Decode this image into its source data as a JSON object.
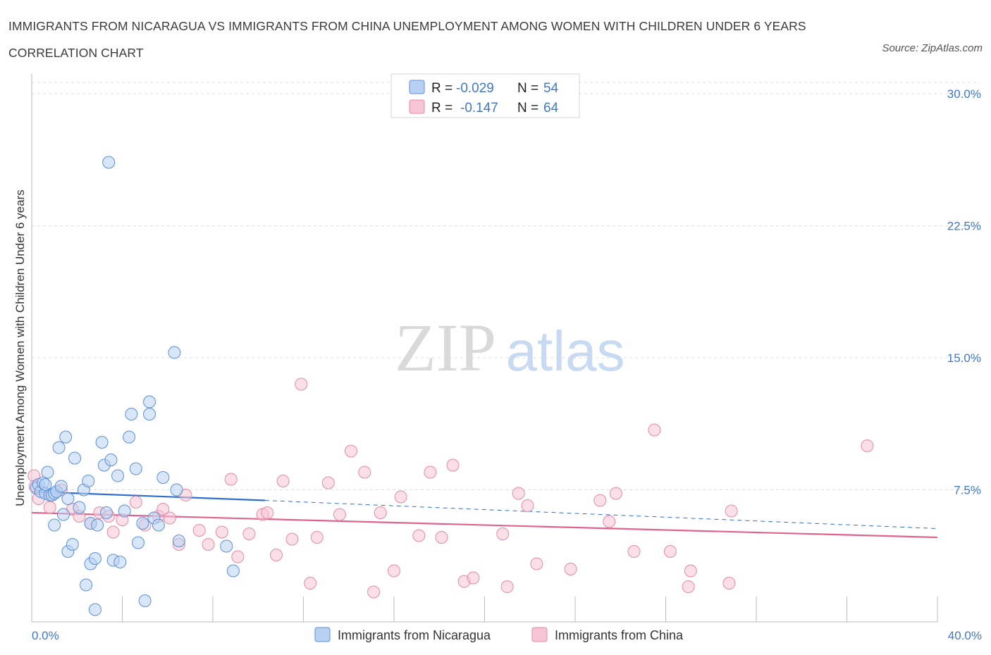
{
  "title": "IMMIGRANTS FROM NICARAGUA VS IMMIGRANTS FROM CHINA UNEMPLOYMENT AMONG WOMEN WITH CHILDREN UNDER 6 YEARS CORRELATION CHART",
  "source": "Source: ZipAtlas.com",
  "watermark": {
    "zip": "ZIP",
    "atlas": "atlas"
  },
  "legend": {
    "items": [
      {
        "r_label": "R =",
        "r_value": "-0.029",
        "n_label": "N =",
        "n_value": "54"
      },
      {
        "r_label": "R =",
        "r_value": "-0.147",
        "n_label": "N =",
        "n_value": "64"
      }
    ]
  },
  "colors": {
    "nicaragua_fill": "#b8d1f3",
    "nicaragua_stroke": "#5b90d8",
    "nicaragua_line": "#2f6fcf",
    "china_fill": "#f6c4d4",
    "china_stroke": "#e58aa9",
    "china_line": "#e0628f",
    "tick": "#3f78cc",
    "grid": "#dddddd"
  },
  "chart_data": {
    "type": "scatter",
    "xlabel": "",
    "ylabel": "Unemployment Among Women with Children Under 6 years",
    "xlim": [
      0,
      40
    ],
    "ylim": [
      0,
      30
    ],
    "x_ticks": [
      0,
      40
    ],
    "x_tick_labels": [
      "0.0%",
      "40.0%"
    ],
    "y_ticks": [
      7.5,
      15,
      22.5,
      30
    ],
    "y_tick_labels": [
      "7.5%",
      "15.0%",
      "22.5%",
      "30.0%"
    ],
    "grid": true,
    "legend_position": "top-center",
    "series": [
      {
        "name": "Immigrants from Nicaragua",
        "color": "#5b90d8",
        "trend": {
          "x": [
            0,
            10.3
          ],
          "y": [
            7.4,
            6.9
          ],
          "dashed_to": [
            40,
            5.3
          ]
        },
        "points": [
          [
            0.2,
            7.6
          ],
          [
            0.3,
            7.8
          ],
          [
            0.4,
            7.4
          ],
          [
            0.5,
            7.9
          ],
          [
            0.6,
            7.3
          ],
          [
            0.6,
            7.8
          ],
          [
            0.7,
            8.5
          ],
          [
            0.8,
            7.2
          ],
          [
            0.9,
            7.2
          ],
          [
            1.0,
            7.3
          ],
          [
            1.1,
            7.4
          ],
          [
            1.0,
            5.5
          ],
          [
            1.2,
            9.9
          ],
          [
            1.3,
            7.7
          ],
          [
            1.4,
            6.1
          ],
          [
            1.5,
            10.5
          ],
          [
            1.6,
            7.0
          ],
          [
            1.6,
            4.0
          ],
          [
            1.8,
            4.4
          ],
          [
            1.9,
            9.3
          ],
          [
            2.1,
            6.5
          ],
          [
            2.3,
            7.5
          ],
          [
            2.4,
            2.1
          ],
          [
            2.5,
            8.0
          ],
          [
            2.6,
            5.6
          ],
          [
            2.6,
            3.3
          ],
          [
            2.8,
            0.7
          ],
          [
            2.8,
            3.6
          ],
          [
            2.9,
            5.5
          ],
          [
            3.1,
            10.2
          ],
          [
            3.2,
            8.9
          ],
          [
            3.3,
            6.2
          ],
          [
            3.4,
            26.1
          ],
          [
            3.5,
            9.2
          ],
          [
            3.6,
            3.5
          ],
          [
            3.8,
            8.3
          ],
          [
            3.9,
            3.4
          ],
          [
            4.1,
            6.3
          ],
          [
            4.3,
            10.5
          ],
          [
            4.4,
            11.8
          ],
          [
            4.6,
            8.7
          ],
          [
            4.7,
            4.5
          ],
          [
            4.9,
            5.6
          ],
          [
            5.0,
            1.2
          ],
          [
            5.2,
            12.5
          ],
          [
            5.2,
            11.8
          ],
          [
            5.4,
            5.9
          ],
          [
            5.6,
            5.5
          ],
          [
            5.8,
            8.2
          ],
          [
            6.3,
            15.3
          ],
          [
            6.4,
            7.5
          ],
          [
            6.5,
            4.6
          ],
          [
            8.6,
            4.3
          ],
          [
            8.9,
            2.9
          ]
        ]
      },
      {
        "name": "Immigrants from China",
        "color": "#e58aa9",
        "trend": {
          "x": [
            0,
            40
          ],
          "y": [
            6.2,
            4.8
          ]
        },
        "points": [
          [
            0.1,
            8.3
          ],
          [
            0.3,
            7.0
          ],
          [
            0.8,
            6.5
          ],
          [
            1.3,
            7.5
          ],
          [
            1.8,
            6.4
          ],
          [
            2.1,
            6.0
          ],
          [
            2.6,
            5.6
          ],
          [
            3.0,
            6.2
          ],
          [
            3.4,
            6.0
          ],
          [
            3.6,
            5.1
          ],
          [
            4.0,
            5.8
          ],
          [
            4.6,
            6.8
          ],
          [
            5.0,
            5.5
          ],
          [
            5.6,
            6.0
          ],
          [
            5.8,
            6.4
          ],
          [
            6.1,
            5.9
          ],
          [
            6.5,
            4.4
          ],
          [
            6.8,
            7.2
          ],
          [
            7.4,
            5.2
          ],
          [
            7.8,
            4.4
          ],
          [
            8.4,
            5.1
          ],
          [
            8.8,
            8.1
          ],
          [
            9.1,
            3.7
          ],
          [
            9.6,
            5.0
          ],
          [
            10.2,
            6.1
          ],
          [
            10.4,
            6.2
          ],
          [
            10.8,
            3.8
          ],
          [
            11.1,
            8.0
          ],
          [
            11.5,
            4.7
          ],
          [
            11.9,
            13.5
          ],
          [
            12.3,
            2.2
          ],
          [
            12.6,
            4.8
          ],
          [
            13.1,
            7.9
          ],
          [
            13.6,
            6.1
          ],
          [
            14.1,
            9.7
          ],
          [
            14.7,
            8.5
          ],
          [
            15.1,
            1.7
          ],
          [
            15.4,
            6.2
          ],
          [
            16.0,
            2.9
          ],
          [
            16.3,
            7.1
          ],
          [
            17.1,
            4.9
          ],
          [
            17.6,
            8.5
          ],
          [
            18.1,
            4.8
          ],
          [
            18.6,
            8.9
          ],
          [
            19.1,
            2.3
          ],
          [
            19.5,
            2.5
          ],
          [
            20.8,
            5.0
          ],
          [
            21.0,
            2.0
          ],
          [
            21.5,
            7.3
          ],
          [
            21.9,
            6.6
          ],
          [
            22.3,
            3.3
          ],
          [
            23.8,
            3.0
          ],
          [
            25.1,
            6.9
          ],
          [
            25.5,
            5.7
          ],
          [
            25.8,
            7.3
          ],
          [
            26.6,
            4.0
          ],
          [
            27.5,
            10.9
          ],
          [
            28.2,
            4.0
          ],
          [
            29.0,
            2.0
          ],
          [
            29.1,
            2.9
          ],
          [
            30.8,
            2.2
          ],
          [
            30.9,
            6.3
          ],
          [
            36.9,
            10.0
          ],
          [
            0.15,
            7.7
          ]
        ]
      }
    ]
  },
  "bottom_legend": [
    "Immigrants from Nicaragua",
    "Immigrants from China"
  ]
}
